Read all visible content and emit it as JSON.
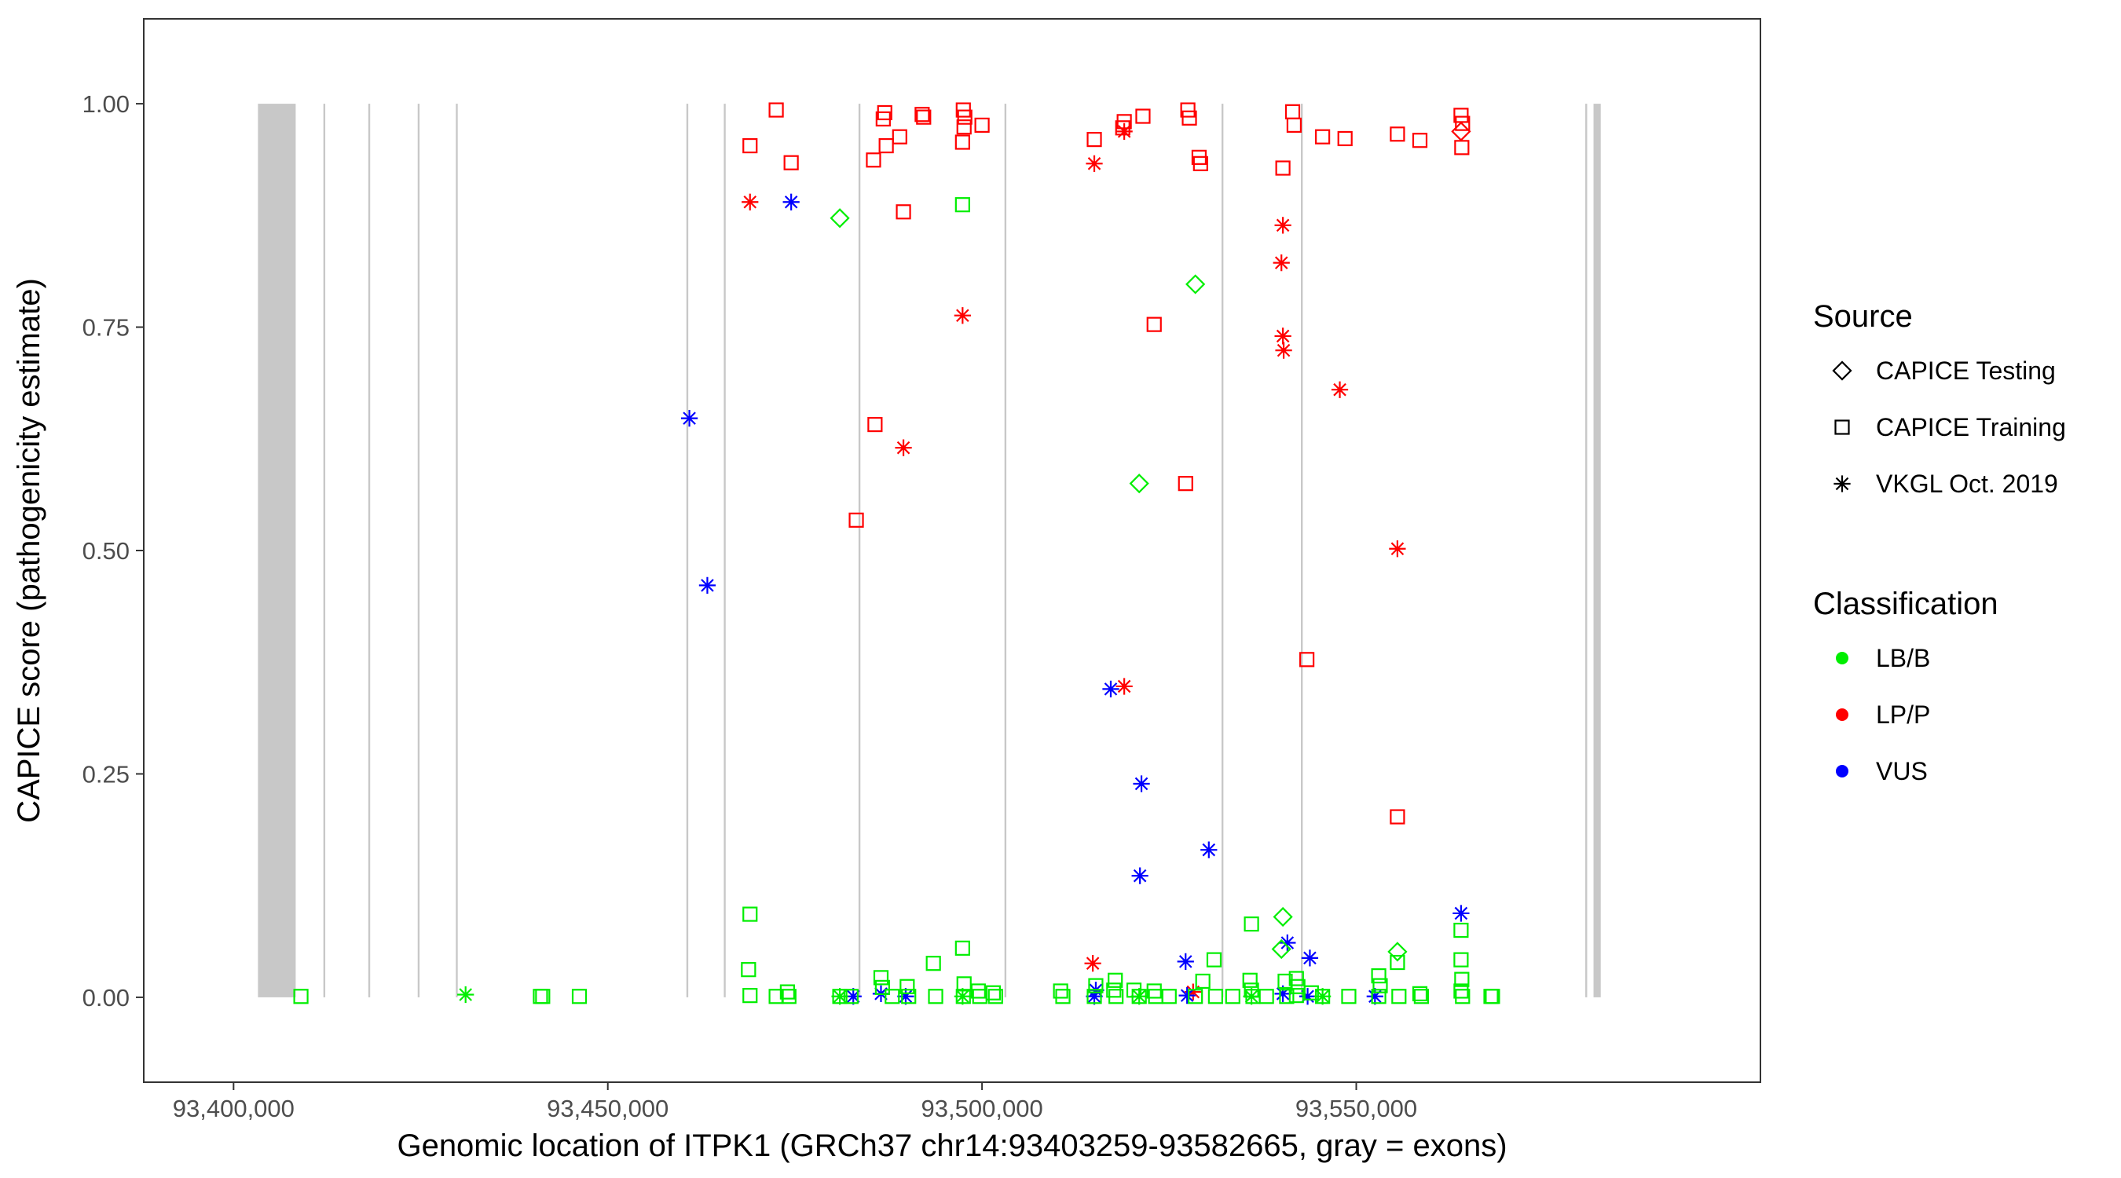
{
  "chart_data": {
    "type": "scatter",
    "title": "",
    "xlabel": "Genomic location of ITPK1 (GRCh37 chr14:93403259-93582665, gray = exons)",
    "ylabel": "CAPICE score (pathogenicity estimate)",
    "xlim": [
      93388000,
      93604000
    ],
    "ylim": [
      -0.095,
      1.095
    ],
    "x_ticks": [
      93400000,
      93450000,
      93500000,
      93550000
    ],
    "x_tick_labels": [
      "93,400,000",
      "93,450,000",
      "93,500,000",
      "93,550,000"
    ],
    "y_ticks": [
      0,
      0.25,
      0.5,
      0.75,
      1
    ],
    "y_tick_labels": [
      "0.00",
      "0.25",
      "0.50",
      "0.75",
      "1.00"
    ],
    "grid": false,
    "background": "white with black panel border",
    "exons": [
      [
        93403259,
        93408300
      ],
      [
        93412000,
        93412250
      ],
      [
        93418000,
        93418250
      ],
      [
        93424600,
        93424850
      ],
      [
        93429700,
        93429950
      ],
      [
        93460500,
        93460750
      ],
      [
        93465500,
        93465750
      ],
      [
        93483500,
        93483750
      ],
      [
        93503000,
        93503250
      ],
      [
        93532000,
        93532250
      ],
      [
        93542600,
        93542850
      ],
      [
        93580600,
        93580850
      ],
      [
        93581700,
        93582665
      ]
    ],
    "exon_color": "#c8c8c8",
    "legend": {
      "placement": "right",
      "source": {
        "title": "Source",
        "entries": [
          {
            "label": "CAPICE Testing",
            "shape": "diamond"
          },
          {
            "label": "CAPICE Training",
            "shape": "square"
          },
          {
            "label": "VKGL Oct. 2019",
            "shape": "asterisk"
          }
        ]
      },
      "classification": {
        "title": "Classification",
        "entries": [
          {
            "label": "LB/B",
            "color": "#00ee00"
          },
          {
            "label": "LP/P",
            "color": "#ff0000"
          },
          {
            "label": "VUS",
            "color": "#0000ff"
          }
        ]
      }
    },
    "series": [
      {
        "source": "CAPICE Training",
        "classification": "LP/P",
        "shape": "square",
        "color": "#ff0000",
        "points": [
          [
            93472500,
            0.993
          ],
          [
            93469000,
            0.953
          ],
          [
            93474500,
            0.934
          ],
          [
            93487000,
            0.99
          ],
          [
            93486800,
            0.983
          ],
          [
            93485500,
            0.937
          ],
          [
            93487200,
            0.953
          ],
          [
            93489000,
            0.963
          ],
          [
            93489500,
            0.879
          ],
          [
            93492000,
            0.988
          ],
          [
            93492200,
            0.985
          ],
          [
            93497500,
            0.993
          ],
          [
            93497700,
            0.985
          ],
          [
            93497600,
            0.974
          ],
          [
            93497400,
            0.957
          ],
          [
            93500000,
            0.976
          ],
          [
            93515000,
            0.96
          ],
          [
            93519000,
            0.98
          ],
          [
            93518800,
            0.973
          ],
          [
            93521500,
            0.986
          ],
          [
            93527500,
            0.993
          ],
          [
            93527700,
            0.984
          ],
          [
            93529000,
            0.94
          ],
          [
            93529200,
            0.933
          ],
          [
            93523000,
            0.753
          ],
          [
            93527200,
            0.575
          ],
          [
            93483200,
            0.534
          ],
          [
            93485700,
            0.641
          ],
          [
            93540200,
            0.928
          ],
          [
            93541500,
            0.991
          ],
          [
            93541700,
            0.976
          ],
          [
            93545500,
            0.963
          ],
          [
            93548500,
            0.961
          ],
          [
            93555500,
            0.966
          ],
          [
            93558500,
            0.959
          ],
          [
            93564000,
            0.987
          ],
          [
            93564200,
            0.978
          ],
          [
            93564100,
            0.951
          ],
          [
            93543400,
            0.378
          ],
          [
            93555500,
            0.202
          ]
        ]
      },
      {
        "source": "CAPICE Testing",
        "classification": "LP/P",
        "shape": "diamond",
        "color": "#ff0000",
        "points": [
          [
            93564000,
            0.969
          ]
        ]
      },
      {
        "source": "VKGL Oct. 2019",
        "classification": "LP/P",
        "shape": "asterisk",
        "color": "#ff0000",
        "points": [
          [
            93469000,
            0.89
          ],
          [
            93497400,
            0.763
          ],
          [
            93489500,
            0.615
          ],
          [
            93515000,
            0.933
          ],
          [
            93519000,
            0.969
          ],
          [
            93540200,
            0.864
          ],
          [
            93540000,
            0.822
          ],
          [
            93540200,
            0.74
          ],
          [
            93540300,
            0.724
          ],
          [
            93547800,
            0.68
          ],
          [
            93555500,
            0.502
          ],
          [
            93519000,
            0.348
          ],
          [
            93514800,
            0.038
          ],
          [
            93528200,
            0.006
          ]
        ]
      },
      {
        "source": "VKGL Oct. 2019",
        "classification": "VUS",
        "shape": "asterisk",
        "color": "#0000ff",
        "points": [
          [
            93474500,
            0.89
          ],
          [
            93460900,
            0.648
          ],
          [
            93463300,
            0.461
          ],
          [
            93517200,
            0.345
          ],
          [
            93521300,
            0.239
          ],
          [
            93521100,
            0.136
          ],
          [
            93530300,
            0.165
          ],
          [
            93527200,
            0.04
          ],
          [
            93540800,
            0.061
          ],
          [
            93543800,
            0.044
          ],
          [
            93564000,
            0.094
          ],
          [
            93482800,
            0.001
          ],
          [
            93486500,
            0.004
          ],
          [
            93489800,
            0.001
          ],
          [
            93515000,
            0.001
          ],
          [
            93515200,
            0.008
          ],
          [
            93527400,
            0.002
          ],
          [
            93540200,
            0.004
          ],
          [
            93543500,
            0.001
          ],
          [
            93552500,
            0.001
          ]
        ]
      },
      {
        "source": "CAPICE Training",
        "classification": "LB/B",
        "shape": "square",
        "color": "#00ee00",
        "points": [
          [
            93409000,
            0.001
          ],
          [
            93441000,
            0.001
          ],
          [
            93441300,
            0.001
          ],
          [
            93446200,
            0.001
          ],
          [
            93469000,
            0.093
          ],
          [
            93468800,
            0.031
          ],
          [
            93469000,
            0.002
          ],
          [
            93472500,
            0.001
          ],
          [
            93474000,
            0.006
          ],
          [
            93474200,
            0.001
          ],
          [
            93481000,
            0.001
          ],
          [
            93482500,
            0.001
          ],
          [
            93486500,
            0.022
          ],
          [
            93486700,
            0.011
          ],
          [
            93488000,
            0.001
          ],
          [
            93490000,
            0.012
          ],
          [
            93490200,
            0.001
          ],
          [
            93493500,
            0.038
          ],
          [
            93493800,
            0.001
          ],
          [
            93497400,
            0.887
          ],
          [
            93497400,
            0.055
          ],
          [
            93497600,
            0.015
          ],
          [
            93497500,
            0.001
          ],
          [
            93499500,
            0.007
          ],
          [
            93499700,
            0.001
          ],
          [
            93501500,
            0.005
          ],
          [
            93501800,
            0.001
          ],
          [
            93510500,
            0.007
          ],
          [
            93510800,
            0.001
          ],
          [
            93515200,
            0.013
          ],
          [
            93515000,
            0.001
          ],
          [
            93517800,
            0.019
          ],
          [
            93517600,
            0.008
          ],
          [
            93517900,
            0.001
          ],
          [
            93520300,
            0.008
          ],
          [
            93521000,
            0.001
          ],
          [
            93523000,
            0.007
          ],
          [
            93523200,
            0.001
          ],
          [
            93525000,
            0.001
          ],
          [
            93528500,
            0.001
          ],
          [
            93529500,
            0.018
          ],
          [
            93531000,
            0.042
          ],
          [
            93531200,
            0.001
          ],
          [
            93533500,
            0.001
          ],
          [
            93536000,
            0.082
          ],
          [
            93535800,
            0.019
          ],
          [
            93536000,
            0.008
          ],
          [
            93536200,
            0.001
          ],
          [
            93538000,
            0.001
          ],
          [
            93540500,
            0.018
          ],
          [
            93540700,
            0.001
          ],
          [
            93542000,
            0.021
          ],
          [
            93542200,
            0.012
          ],
          [
            93542000,
            0.002
          ],
          [
            93544000,
            0.005
          ],
          [
            93545500,
            0.001
          ],
          [
            93549000,
            0.001
          ],
          [
            93553000,
            0.024
          ],
          [
            93553200,
            0.013
          ],
          [
            93553000,
            0.001
          ],
          [
            93555500,
            0.039
          ],
          [
            93555700,
            0.001
          ],
          [
            93558500,
            0.004
          ],
          [
            93558700,
            0.001
          ],
          [
            93564000,
            0.075
          ],
          [
            93564000,
            0.042
          ],
          [
            93564100,
            0.02
          ],
          [
            93564000,
            0.007
          ],
          [
            93564200,
            0.001
          ],
          [
            93568000,
            0.001
          ],
          [
            93568200,
            0.001
          ]
        ]
      },
      {
        "source": "CAPICE Testing",
        "classification": "LB/B",
        "shape": "diamond",
        "color": "#00ee00",
        "points": [
          [
            93481000,
            0.872
          ],
          [
            93528500,
            0.798
          ],
          [
            93521000,
            0.575
          ],
          [
            93540200,
            0.09
          ],
          [
            93540000,
            0.054
          ],
          [
            93555500,
            0.051
          ]
        ]
      },
      {
        "source": "VKGL Oct. 2019",
        "classification": "LB/B",
        "shape": "asterisk",
        "color": "#00ee00",
        "points": [
          [
            93431000,
            0.003
          ],
          [
            93481000,
            0.001
          ],
          [
            93497400,
            0.001
          ],
          [
            93521000,
            0.001
          ],
          [
            93536000,
            0.001
          ],
          [
            93545500,
            0.001
          ]
        ]
      }
    ]
  }
}
